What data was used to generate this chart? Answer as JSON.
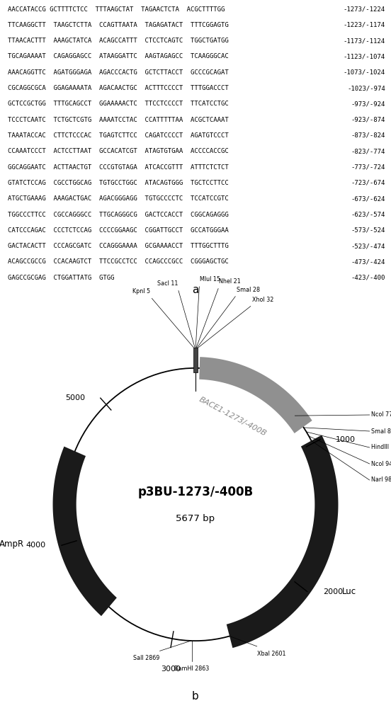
{
  "panel_a": {
    "lines": [
      [
        "AACCATACCG GCTTTTCTCC  TTTAAGCTAT  TAGAACTCTA  ACGCTTTTGG",
        "-1273/-1224"
      ],
      [
        "TTCAAGGCTT  TAAGCTCTTA  CCAGTTAATA  TAGAGATACT  TTTCGGAGTG",
        "-1223/-1174"
      ],
      [
        "TTAACACTTT  AAAGCTATCA  ACAGCCATTT  CTCCTCAGTC  TGGCTGATGG",
        "-1173/-1124"
      ],
      [
        "TGCAGAAAAT  CAGAGGAGCC  ATAAGGATTC  AAGTAGAGCC  TCAAGGGCAC",
        "-1123/-1074"
      ],
      [
        "AAACAGGTTC  AGATGGGAGA  AGACCCACTG  GCTCTTACCT  GCCCGCAGAT",
        "-1073/-1024"
      ],
      [
        "CGCAGGCGCA  GGAGAAAATA  AGACAACTGC  ACTTTCCCCT  TTTGGACCCT",
        "-1023/-974"
      ],
      [
        "GCTCCGCTGG  TTTGCAGCCT  GGAAAAACTC  TTCCTCCCCT  TTCATCCTGC",
        "-973/-924"
      ],
      [
        "TCCCTCAATC  TCTGCTCGTG  AAAATCCTAC  CCATTTTTAA  ACGCTCAAAT",
        "-923/-874"
      ],
      [
        "TAAATACCAC  CTTCTCCCAC  TGAGTCTTCC  CAGATCCCCT  AGATGTCCCT",
        "-873/-824"
      ],
      [
        "CCAAATCCCT  ACTCCTTAAT  GCCACATCGT  ATAGTGTGAA  ACCCCACCGC",
        "-823/-774"
      ],
      [
        "GGCAGGAATC  ACTTAACTGT  CCCGTGTAGA  ATCACCGTTT  ATTTCTCTCT",
        "-773/-724"
      ],
      [
        "GTATCTCCAG  CGCCTGGCAG  TGTGCCTGGC  ATACAGTGGG  TGCTCCTTCC",
        "-723/-674"
      ],
      [
        "ATGCTGAAAG  AAAGACTGAC  AGACGGGAGG  TGTGCCCCTC  TCCATCCGTC",
        "-673/-624"
      ],
      [
        "TGGCCCTTCC  CGCCAGGGCC  TTGCAGGGCG  GACTCCACCT  CGGCAGAGGG",
        "-623/-574"
      ],
      [
        "CATCCCAGAC  CCCTCTCCAG  CCCCGGAAGC  CGGATTGCCT  GCCATGGGAA",
        "-573/-524"
      ],
      [
        "GACTACACTT  CCCAGCGATC  CCAGGGAAAA  GCGAAAACCT  TTTGGCTTTG",
        "-523/-474"
      ],
      [
        "ACAGCCGCCG  CCACAAGTCT  TTCCGCCTCC  CCAGCCCGCC  CGGGAGCTGC",
        "-473/-424"
      ],
      [
        "GAGCCGCGAG  CTGGATTATG  GTGG",
        "-423/-400"
      ]
    ]
  },
  "panel_b": {
    "title_line1": "p3BU-1273/-400B",
    "title_line2": "5677 bp",
    "total_bp": 5677
  }
}
